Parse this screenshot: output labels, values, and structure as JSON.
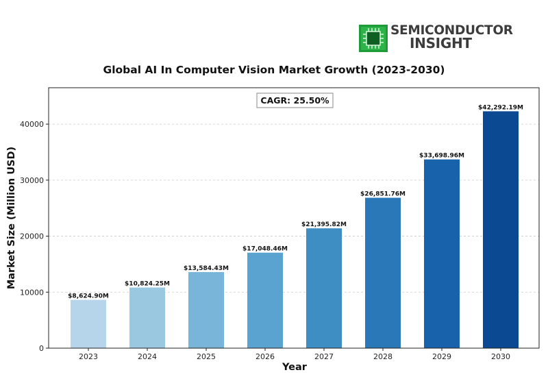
{
  "logo": {
    "line1": "SEMICONDUCTOR",
    "line2": "INSIGHT",
    "chip_color": "#1f9a3a"
  },
  "chart_data": {
    "type": "bar",
    "title": "Global AI In Computer Vision Market Growth (2023-2030)",
    "xlabel": "Year",
    "ylabel": "Market Size (Million USD)",
    "categories": [
      "2023",
      "2024",
      "2025",
      "2026",
      "2027",
      "2028",
      "2029",
      "2030"
    ],
    "values": [
      8624.9,
      10824.25,
      13584.43,
      17048.46,
      21395.82,
      26851.76,
      33698.96,
      42292.19
    ],
    "data_labels": [
      "$8,624.90M",
      "$10,824.25M",
      "$13,584.43M",
      "$17,048.46M",
      "$21,395.82M",
      "$26,851.76M",
      "$33,698.96M",
      "$42,292.19M"
    ],
    "colors": [
      "#b6d4ea",
      "#9bc8e1",
      "#78b5d9",
      "#5aa2cf",
      "#3e8dc3",
      "#2a78b8",
      "#1762aa",
      "#0b4a92"
    ],
    "yticks": [
      0,
      10000,
      20000,
      30000,
      40000
    ],
    "ylim": [
      0,
      46500
    ],
    "grid": "horizontal dashed",
    "annotation": "CAGR: 25.50%"
  }
}
